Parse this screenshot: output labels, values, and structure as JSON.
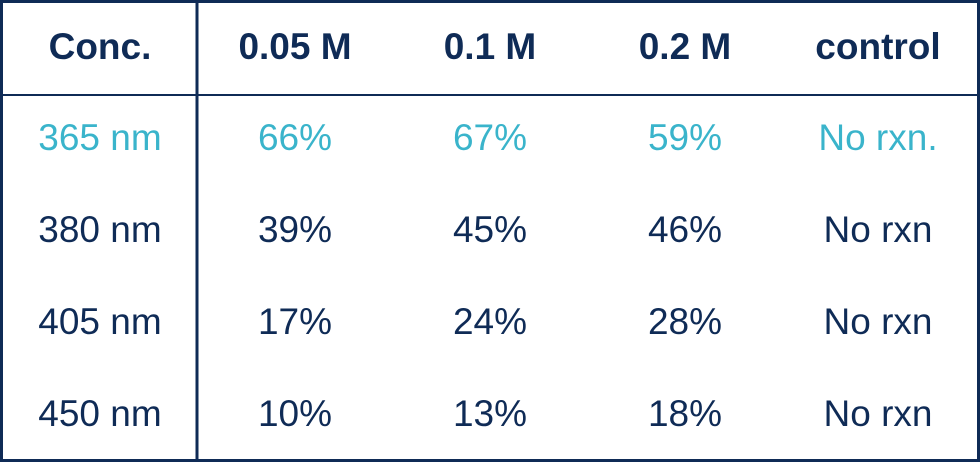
{
  "table": {
    "header": [
      "Conc.",
      "0.05 M",
      "0.1 M",
      "0.2 M",
      "control"
    ],
    "rows": [
      [
        "365 nm",
        "66%",
        "67%",
        "59%",
        "No rxn."
      ],
      [
        "380 nm",
        "39%",
        "45%",
        "46%",
        "No rxn"
      ],
      [
        "405 nm",
        "17%",
        "24%",
        "28%",
        "No rxn"
      ],
      [
        "450 nm",
        "10%",
        "13%",
        "18%",
        "No rxn"
      ]
    ]
  }
}
